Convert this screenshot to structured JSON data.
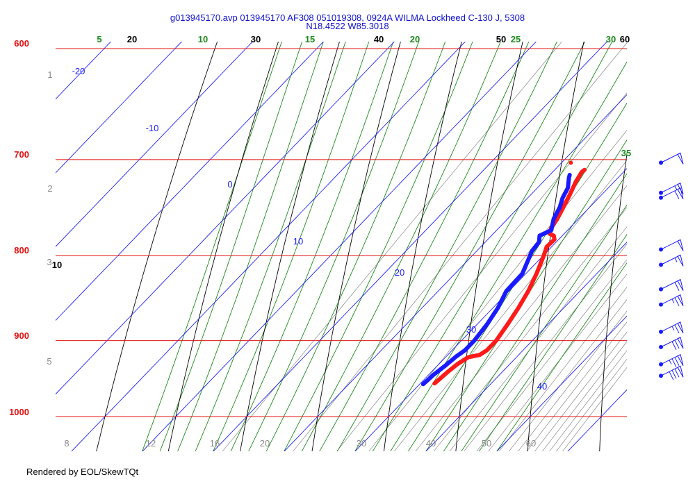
{
  "header": {
    "title_line1": "g013945170.avp 013945170 AF308 051019308, 0924A WILMA Lockheed C-130 J, 5308",
    "title_line2": "N18.4522 W85.3018"
  },
  "footer": {
    "text": "Rendered by EOL/SkewTQt"
  },
  "colors": {
    "isobar": "#e01010",
    "isotherm": "#1a1aff",
    "dry_adiabat": "#000000",
    "moist_adiabat": "#1a8a1a",
    "mixing_ratio": "#888888",
    "temperature": "#ff1a1a",
    "dewpoint": "#1a1aff",
    "wind_barb": "#1a1aff"
  },
  "chart_data": {
    "type": "skew-t",
    "pressure_axis": {
      "units": "hPa",
      "labels": [
        "600",
        "700",
        "800",
        "900",
        "1000"
      ],
      "range": [
        1050,
        600
      ]
    },
    "isotherm_labels": [
      "-20",
      "-10",
      "0",
      "10",
      "20",
      "30",
      "40"
    ],
    "dry_adiabat_labels": [
      "10",
      "20",
      "30",
      "40",
      "50",
      "60"
    ],
    "moist_adiabat_labels": [
      "5",
      "10",
      "15",
      "20",
      "25",
      "30",
      "35"
    ],
    "mixing_ratio_labels": [
      "8",
      "12",
      "16",
      "20",
      "30",
      "40",
      "50",
      "60"
    ],
    "height_labels": [
      "1",
      "2",
      "3",
      "5"
    ],
    "temperature": {
      "p": [
        955,
        940,
        930,
        921,
        918,
        912,
        900,
        880,
        860,
        840,
        820,
        800,
        790,
        782,
        778,
        776,
        770,
        760,
        748,
        735,
        722,
        712,
        710
      ],
      "t": [
        22.0,
        22.3,
        22.6,
        23.2,
        24.5,
        24.9,
        24.9,
        24.3,
        23.6,
        22.7,
        21.5,
        20.1,
        19.3,
        19.4,
        18.8,
        18.0,
        17.4,
        17.0,
        16.3,
        15.5,
        14.6,
        14.1,
        14.2
      ]
    },
    "dewpoint": {
      "p": [
        956,
        950,
        943,
        932,
        920,
        912,
        900,
        880,
        860,
        840,
        820,
        805,
        795,
        785,
        778,
        772,
        760,
        748,
        738,
        728,
        718,
        715
      ],
      "t": [
        20.5,
        20.6,
        20.7,
        21.1,
        21.4,
        21.8,
        21.8,
        21.4,
        20.7,
        19.6,
        19.5,
        18.5,
        17.8,
        17.6,
        16.8,
        17.7,
        16.5,
        15.8,
        14.9,
        14.3,
        13.1,
        12.8
      ]
    },
    "extra_point": {
      "p": 703,
      "t": 11.3
    },
    "wind_profile": [
      {
        "p": 703,
        "kts": 50
      },
      {
        "p": 733,
        "kts": 55
      },
      {
        "p": 738,
        "kts": 60
      },
      {
        "p": 793,
        "kts": 50
      },
      {
        "p": 810,
        "kts": 55
      },
      {
        "p": 838,
        "kts": 60
      },
      {
        "p": 856,
        "kts": 65
      },
      {
        "p": 889,
        "kts": 65
      },
      {
        "p": 908,
        "kts": 70
      },
      {
        "p": 930,
        "kts": 75
      },
      {
        "p": 945,
        "kts": 80
      }
    ],
    "grid": true
  }
}
